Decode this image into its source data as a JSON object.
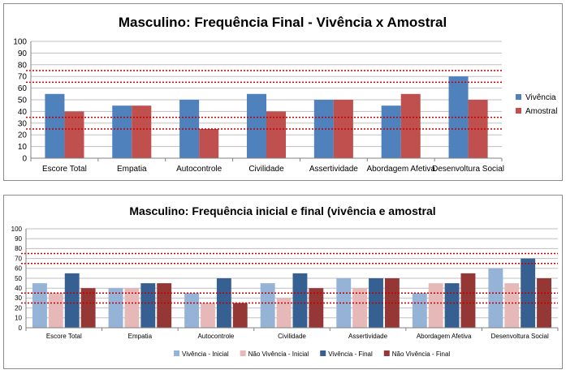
{
  "chart_data": [
    {
      "type": "bar",
      "title": "Masculino: Frequência Final - Vivência x Amostral",
      "categories": [
        "Escore Total",
        "Empatia",
        "Autocontrole",
        "Civilidade",
        "Assertividade",
        "Abordagem Afetiva",
        "Desenvoltura Social"
      ],
      "series": [
        {
          "name": "Vivência",
          "color": "#4f81bd",
          "values": [
            55,
            45,
            50,
            55,
            50,
            45,
            70
          ]
        },
        {
          "name": "Amostral",
          "color": "#c0504d",
          "values": [
            40,
            45,
            25,
            40,
            50,
            55,
            50
          ]
        }
      ],
      "reference_lines": [
        75,
        65,
        35,
        25
      ],
      "reference_color": "#c00000",
      "ylim": [
        0,
        100
      ],
      "yticks": [
        "0",
        "10",
        "20",
        "30",
        "40",
        "50",
        "60",
        "70",
        "80",
        "90",
        "100"
      ],
      "legend_position": "right",
      "grid": true
    },
    {
      "type": "bar",
      "title": "Masculino: Frequência inicial e final (vivência e amostral",
      "categories": [
        "Escore Total",
        "Empatia",
        "Autocontrole",
        "Civilidade",
        "Assertividade",
        "Abordagem Afetiva",
        "Desenvoltura Social"
      ],
      "series": [
        {
          "name": "Vivência - Inicial",
          "color": "#95b3d7",
          "values": [
            45,
            40,
            35,
            45,
            50,
            35,
            60
          ]
        },
        {
          "name": "Não Vivência - Inicial",
          "color": "#e6b9b8",
          "values": [
            35,
            40,
            25,
            30,
            40,
            45,
            45
          ]
        },
        {
          "name": "Vivência - Final",
          "color": "#376092",
          "values": [
            55,
            45,
            50,
            55,
            50,
            45,
            70
          ]
        },
        {
          "name": "Não Vivência - Final",
          "color": "#953735",
          "values": [
            40,
            45,
            25,
            40,
            50,
            55,
            50
          ]
        }
      ],
      "reference_lines": [
        75,
        65,
        35,
        25
      ],
      "reference_color": "#c00000",
      "ylim": [
        0,
        100
      ],
      "yticks": [
        "0",
        "10",
        "20",
        "30",
        "40",
        "50",
        "60",
        "70",
        "80",
        "90",
        "100"
      ],
      "legend_position": "bottom",
      "grid": true
    }
  ]
}
